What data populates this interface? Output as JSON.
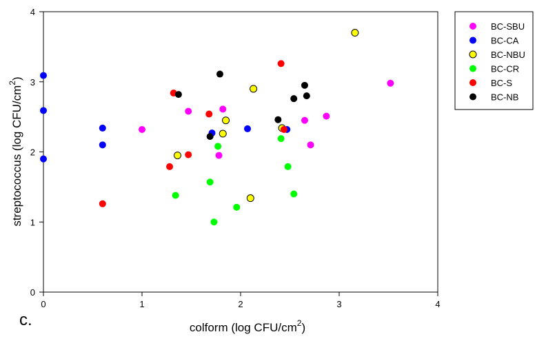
{
  "chart_data": {
    "type": "scatter",
    "panel_label": "c.",
    "xlabel_main": "colform (log CFU/cm",
    "xlabel_sup": "2",
    "xlabel_end": ")",
    "ylabel_main": "streptococcus (log CFU/cm",
    "ylabel_sup": "2",
    "ylabel_end": ")",
    "xlim": [
      0,
      4
    ],
    "ylim": [
      0,
      4
    ],
    "xticks": [
      0,
      1,
      2,
      3,
      4
    ],
    "yticks": [
      0,
      1,
      2,
      3,
      4
    ],
    "grid": false,
    "legend_position": "outside-top-right",
    "series": [
      {
        "name": "BC-SBU",
        "color": "#ff00ff",
        "outline": "none",
        "points": [
          [
            1.0,
            2.32
          ],
          [
            1.47,
            2.58
          ],
          [
            1.78,
            1.95
          ],
          [
            1.82,
            2.61
          ],
          [
            2.65,
            2.45
          ],
          [
            2.71,
            2.1
          ],
          [
            2.87,
            2.51
          ],
          [
            3.52,
            2.98
          ]
        ]
      },
      {
        "name": "BC-CA",
        "color": "#0000ff",
        "outline": "none",
        "points": [
          [
            0.0,
            3.09
          ],
          [
            0.0,
            2.59
          ],
          [
            0.0,
            1.9
          ],
          [
            0.6,
            2.34
          ],
          [
            0.6,
            2.1
          ],
          [
            1.71,
            2.27
          ],
          [
            2.07,
            2.33
          ],
          [
            2.47,
            2.32
          ]
        ]
      },
      {
        "name": "BC-NBU",
        "color": "#ffff00",
        "outline": "#000000",
        "points": [
          [
            1.36,
            1.95
          ],
          [
            1.82,
            2.26
          ],
          [
            1.85,
            2.45
          ],
          [
            2.1,
            1.34
          ],
          [
            2.13,
            2.9
          ],
          [
            2.42,
            2.34
          ],
          [
            3.16,
            3.7
          ]
        ]
      },
      {
        "name": "BC-CR",
        "color": "#00ff00",
        "outline": "none",
        "points": [
          [
            1.34,
            1.38
          ],
          [
            1.69,
            1.57
          ],
          [
            1.73,
            1.0
          ],
          [
            1.77,
            2.08
          ],
          [
            1.96,
            1.21
          ],
          [
            2.41,
            2.19
          ],
          [
            2.48,
            1.79
          ],
          [
            2.54,
            1.4
          ]
        ]
      },
      {
        "name": "BC-S",
        "color": "#ff0000",
        "outline": "none",
        "points": [
          [
            0.6,
            1.26
          ],
          [
            1.28,
            1.79
          ],
          [
            1.32,
            2.84
          ],
          [
            1.47,
            1.96
          ],
          [
            1.68,
            2.54
          ],
          [
            2.41,
            3.26
          ],
          [
            2.44,
            2.32
          ]
        ]
      },
      {
        "name": "BC-NB",
        "color": "#000000",
        "outline": "none",
        "points": [
          [
            1.37,
            2.82
          ],
          [
            1.69,
            2.22
          ],
          [
            1.79,
            3.11
          ],
          [
            2.38,
            2.46
          ],
          [
            2.54,
            2.76
          ],
          [
            2.65,
            2.95
          ],
          [
            2.67,
            2.8
          ]
        ]
      }
    ]
  }
}
